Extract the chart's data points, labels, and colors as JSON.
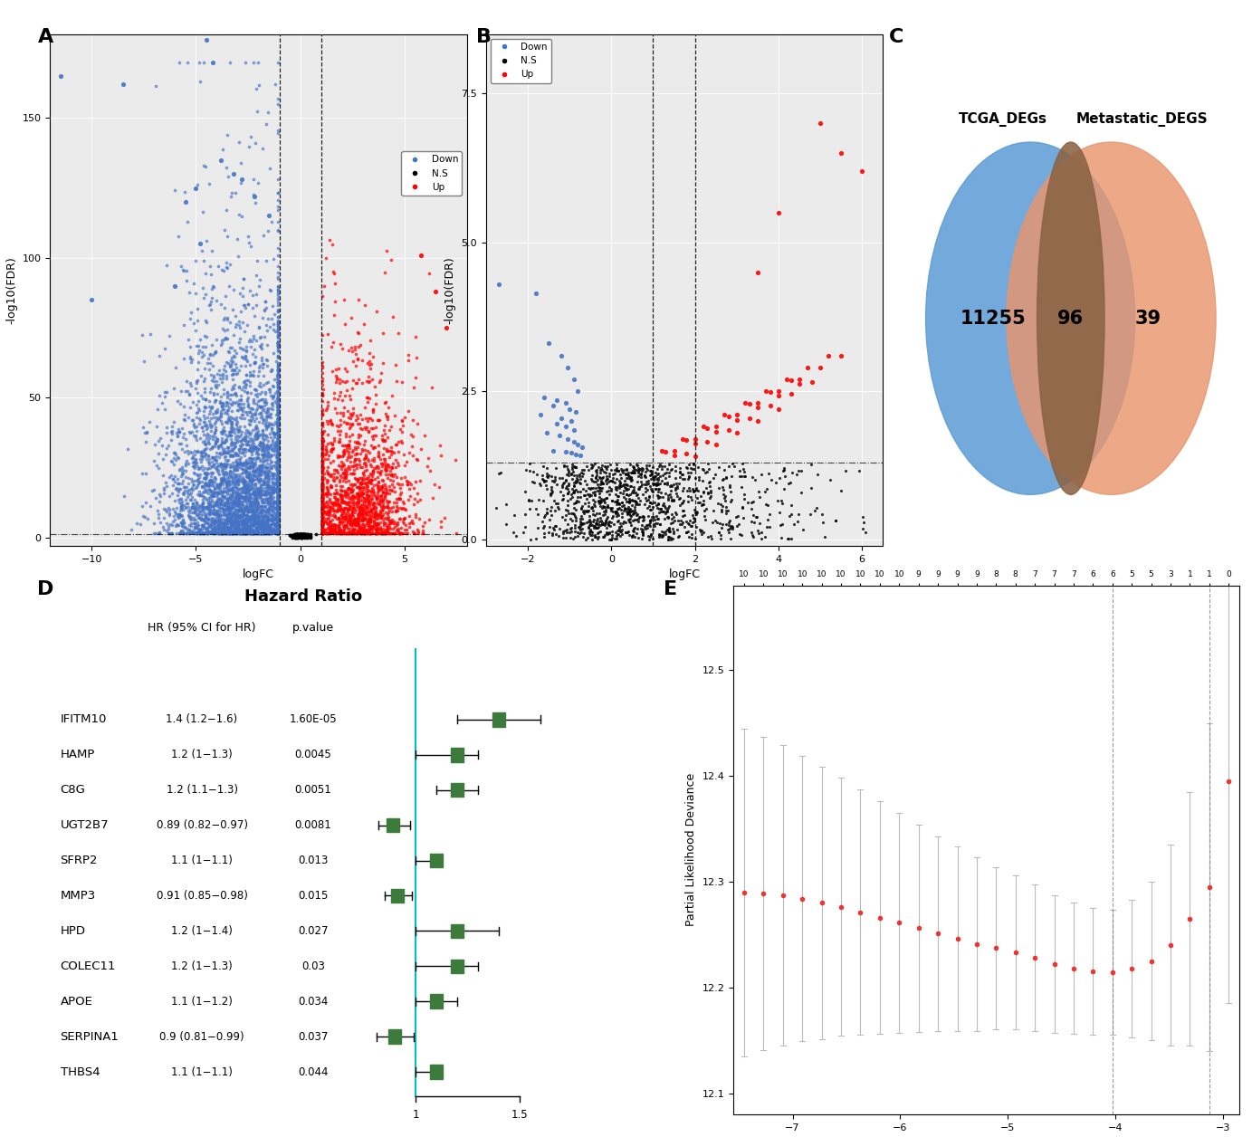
{
  "panel_A": {
    "xlabel": "logFC",
    "ylabel": "-log10(FDR)",
    "xlim": [
      -12,
      8
    ],
    "vlines_x": [
      -1,
      1
    ],
    "hline": 1.3,
    "colors": {
      "down": "#4472C4",
      "ns": "#000000",
      "up": "#FF0000"
    },
    "bg_color": "#EBEBEB"
  },
  "panel_B": {
    "xlabel": "logFC",
    "ylabel": "-log10(FDR)",
    "xlim": [
      -3,
      6.5
    ],
    "ylim": [
      0.0,
      8.5
    ],
    "vlines_x": [
      1,
      2
    ],
    "hline": 1.3,
    "colors": {
      "down": "#4472C4",
      "ns": "#000000",
      "up": "#FF0000"
    },
    "bg_color": "#EBEBEB"
  },
  "panel_C": {
    "set1_label": "TCGA_DEGs",
    "set2_label": "Metastatic_DEGS",
    "set1_only": 11255,
    "intersection": 96,
    "set2_only": 39,
    "color1": "#5B9BD5",
    "color2": "#E8956D",
    "overlap_color": "#8B6344"
  },
  "panel_D": {
    "subtitle": "Hazard Ratio",
    "col1_header": "HR (95% CI for HR)",
    "col2_header": "p.value",
    "genes": [
      "IFITM10",
      "HAMP",
      "C8G",
      "UGT2B7",
      "SFRP2",
      "MMP3",
      "HPD",
      "COLEC11",
      "APOE",
      "SERPINA1",
      "THBS4"
    ],
    "hr_text": [
      "1.4 (1.2−1.6)",
      "1.2 (1−1.3)",
      "1.2 (1.1−1.3)",
      "0.89 (0.82−0.97)",
      "1.1 (1−1.1)",
      "0.91 (0.85−0.98)",
      "1.2 (1−1.4)",
      "1.2 (1−1.3)",
      "1.1 (1−1.2)",
      "0.9 (0.81−0.99)",
      "1.1 (1−1.1)"
    ],
    "pvalue_text": [
      "1.60E-05",
      "0.0045",
      "0.0051",
      "0.0081",
      "0.013",
      "0.015",
      "0.027",
      "0.03",
      "0.034",
      "0.037",
      "0.044"
    ],
    "hr_mean": [
      1.4,
      1.2,
      1.2,
      0.89,
      1.1,
      0.91,
      1.2,
      1.2,
      1.1,
      0.9,
      1.1
    ],
    "hr_low": [
      1.2,
      1.0,
      1.1,
      0.82,
      1.0,
      0.85,
      1.0,
      1.0,
      1.0,
      0.81,
      1.0
    ],
    "hr_high": [
      1.6,
      1.3,
      1.3,
      0.97,
      1.1,
      0.98,
      1.4,
      1.3,
      1.2,
      0.99,
      1.1
    ],
    "hr_xlim": [
      0.75,
      1.65
    ],
    "vline": 1.0,
    "box_color": "#3C7B3C",
    "vline_color": "#00C0C0"
  },
  "panel_E": {
    "ylabel": "Partial Likelihood Deviance",
    "top_labels": [
      10,
      10,
      10,
      10,
      10,
      10,
      10,
      10,
      10,
      9,
      9,
      9,
      9,
      8,
      8,
      7,
      7,
      7,
      6,
      6,
      5,
      5,
      3,
      1,
      1,
      0
    ],
    "x_vals": [
      -7.45,
      -7.27,
      -7.09,
      -6.91,
      -6.73,
      -6.55,
      -6.37,
      -6.19,
      -6.01,
      -5.83,
      -5.65,
      -5.47,
      -5.29,
      -5.11,
      -4.93,
      -4.75,
      -4.57,
      -4.39,
      -4.21,
      -4.03,
      -3.85,
      -3.67,
      -3.49,
      -3.31,
      -3.13,
      -2.95
    ],
    "y_vals": [
      12.29,
      12.289,
      12.287,
      12.284,
      12.28,
      12.276,
      12.271,
      12.266,
      12.261,
      12.256,
      12.251,
      12.246,
      12.241,
      12.237,
      12.233,
      12.228,
      12.222,
      12.218,
      12.215,
      12.214,
      12.218,
      12.225,
      12.24,
      12.265,
      12.295,
      12.395
    ],
    "yerr": [
      0.155,
      0.148,
      0.142,
      0.135,
      0.129,
      0.122,
      0.116,
      0.11,
      0.104,
      0.098,
      0.092,
      0.087,
      0.082,
      0.077,
      0.073,
      0.069,
      0.065,
      0.062,
      0.06,
      0.059,
      0.065,
      0.075,
      0.095,
      0.12,
      0.155,
      0.21
    ],
    "xlim": [
      -7.55,
      -2.85
    ],
    "ylim": [
      12.08,
      12.58
    ],
    "yticks": [
      12.1,
      12.2,
      12.3,
      12.4,
      12.5
    ],
    "vline1": -4.03,
    "vline2": -3.13,
    "dot_color": "#EE3333",
    "error_color": "#BBBBBB"
  }
}
